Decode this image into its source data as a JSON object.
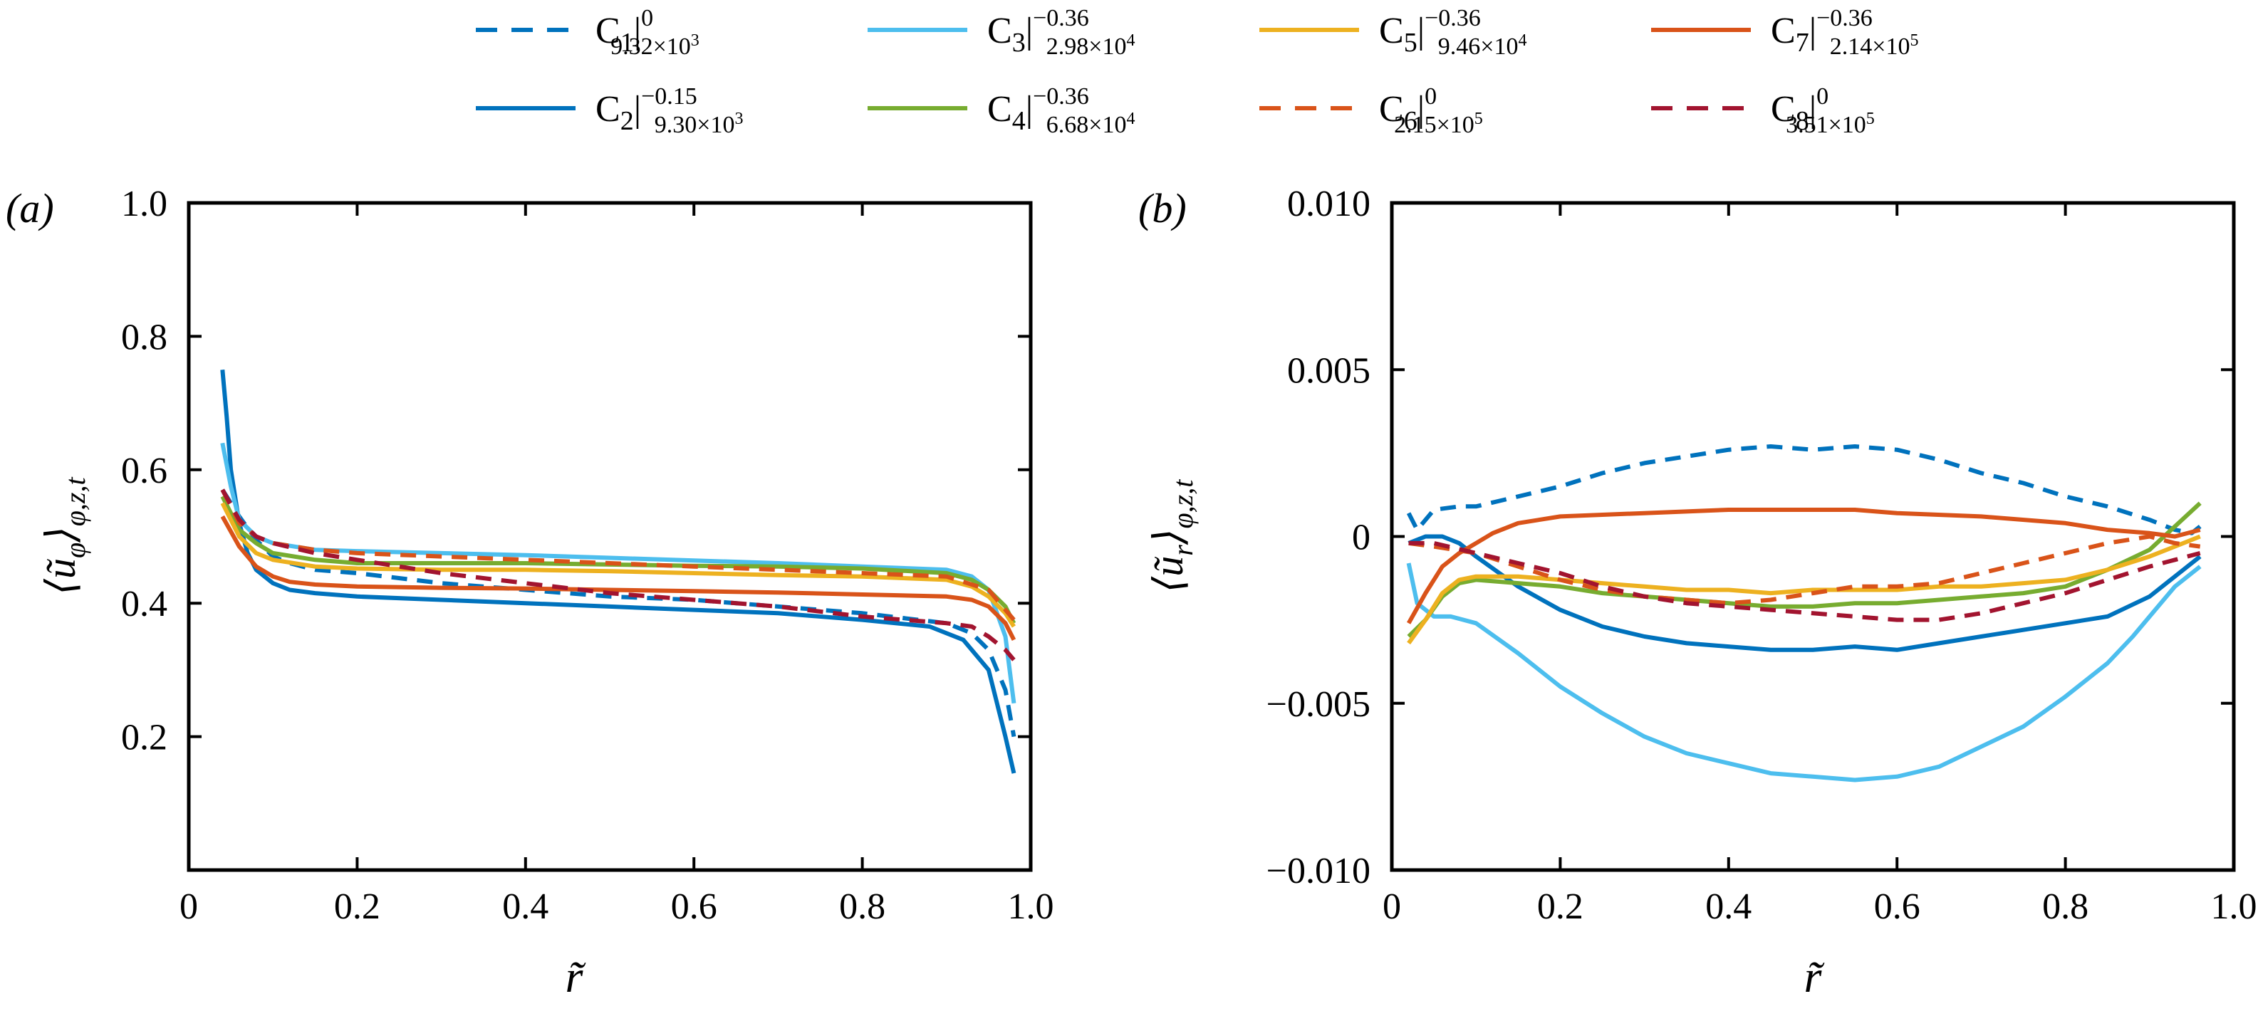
{
  "chart_data": [
    {
      "panel_label": "(a)",
      "type": "line",
      "ylabel_main": "⟨ũ",
      "ylabel_sub": "φ",
      "ylabel_close": "⟩",
      "ylabel_tail": "φ,z,t",
      "xlabel": "r̃",
      "xlim": [
        0,
        1
      ],
      "ylim": [
        0,
        1
      ],
      "xticks": [
        0,
        0.2,
        0.4,
        0.6,
        0.8,
        1.0
      ],
      "xtick_labels": [
        "0",
        "0.2",
        "0.4",
        "0.6",
        "0.8",
        "1.0"
      ],
      "yticks": [
        0.2,
        0.4,
        0.6,
        0.8,
        1.0
      ],
      "ytick_labels": [
        "0.2",
        "0.4",
        "0.6",
        "0.8",
        "1.0"
      ],
      "series": [
        {
          "name": "C1",
          "x": [
            0.04,
            0.06,
            0.08,
            0.1,
            0.12,
            0.15,
            0.2,
            0.3,
            0.4,
            0.5,
            0.6,
            0.7,
            0.8,
            0.9,
            0.93,
            0.95,
            0.97,
            0.98
          ],
          "y": [
            0.57,
            0.53,
            0.495,
            0.47,
            0.46,
            0.45,
            0.445,
            0.43,
            0.42,
            0.41,
            0.405,
            0.395,
            0.385,
            0.37,
            0.355,
            0.33,
            0.27,
            0.2
          ]
        },
        {
          "name": "C2",
          "x": [
            0.04,
            0.045,
            0.05,
            0.06,
            0.07,
            0.08,
            0.1,
            0.12,
            0.15,
            0.2,
            0.3,
            0.4,
            0.5,
            0.6,
            0.7,
            0.8,
            0.88,
            0.92,
            0.95,
            0.97,
            0.98
          ],
          "y": [
            0.75,
            0.68,
            0.6,
            0.52,
            0.475,
            0.45,
            0.43,
            0.42,
            0.415,
            0.41,
            0.405,
            0.4,
            0.395,
            0.39,
            0.385,
            0.375,
            0.365,
            0.345,
            0.3,
            0.2,
            0.145
          ]
        },
        {
          "name": "C3",
          "x": [
            0.04,
            0.05,
            0.06,
            0.08,
            0.1,
            0.15,
            0.2,
            0.3,
            0.4,
            0.5,
            0.6,
            0.7,
            0.8,
            0.9,
            0.93,
            0.95,
            0.97,
            0.98
          ],
          "y": [
            0.64,
            0.575,
            0.525,
            0.5,
            0.49,
            0.48,
            0.478,
            0.475,
            0.472,
            0.468,
            0.464,
            0.46,
            0.455,
            0.45,
            0.44,
            0.42,
            0.35,
            0.25
          ]
        },
        {
          "name": "C4",
          "x": [
            0.04,
            0.06,
            0.08,
            0.1,
            0.15,
            0.2,
            0.3,
            0.4,
            0.5,
            0.6,
            0.7,
            0.8,
            0.9,
            0.93,
            0.95,
            0.97,
            0.98
          ],
          "y": [
            0.56,
            0.51,
            0.49,
            0.475,
            0.465,
            0.46,
            0.46,
            0.46,
            0.458,
            0.456,
            0.455,
            0.452,
            0.445,
            0.435,
            0.42,
            0.395,
            0.37
          ]
        },
        {
          "name": "C5",
          "x": [
            0.04,
            0.06,
            0.08,
            0.1,
            0.15,
            0.2,
            0.3,
            0.4,
            0.5,
            0.6,
            0.7,
            0.8,
            0.9,
            0.93,
            0.95,
            0.97,
            0.98
          ],
          "y": [
            0.55,
            0.5,
            0.475,
            0.465,
            0.455,
            0.452,
            0.45,
            0.45,
            0.448,
            0.445,
            0.442,
            0.44,
            0.435,
            0.425,
            0.41,
            0.385,
            0.365
          ]
        },
        {
          "name": "C6",
          "x": [
            0.04,
            0.06,
            0.08,
            0.1,
            0.15,
            0.2,
            0.3,
            0.4,
            0.5,
            0.6,
            0.7,
            0.8,
            0.9,
            0.95,
            0.98
          ],
          "y": [
            0.57,
            0.52,
            0.5,
            0.49,
            0.48,
            0.475,
            0.47,
            0.465,
            0.46,
            0.455,
            0.45,
            0.445,
            0.44,
            0.42,
            0.375
          ]
        },
        {
          "name": "C7",
          "x": [
            0.04,
            0.06,
            0.08,
            0.1,
            0.12,
            0.15,
            0.2,
            0.3,
            0.4,
            0.5,
            0.6,
            0.7,
            0.8,
            0.9,
            0.93,
            0.95,
            0.97,
            0.98
          ],
          "y": [
            0.53,
            0.485,
            0.455,
            0.44,
            0.432,
            0.428,
            0.425,
            0.423,
            0.422,
            0.42,
            0.418,
            0.416,
            0.413,
            0.41,
            0.405,
            0.395,
            0.37,
            0.345
          ]
        },
        {
          "name": "C8",
          "x": [
            0.04,
            0.06,
            0.08,
            0.1,
            0.15,
            0.2,
            0.3,
            0.4,
            0.5,
            0.6,
            0.7,
            0.8,
            0.9,
            0.93,
            0.95,
            0.97,
            0.98
          ],
          "y": [
            0.57,
            0.525,
            0.5,
            0.49,
            0.475,
            0.465,
            0.445,
            0.43,
            0.415,
            0.405,
            0.395,
            0.38,
            0.37,
            0.365,
            0.35,
            0.33,
            0.315
          ]
        }
      ]
    },
    {
      "panel_label": "(b)",
      "type": "line",
      "ylabel_main": "⟨ũ",
      "ylabel_sub": "r",
      "ylabel_close": "⟩",
      "ylabel_tail": "φ,z,t",
      "xlabel": "r̃",
      "xlim": [
        0,
        1
      ],
      "ylim": [
        -0.01,
        0.01
      ],
      "xticks": [
        0,
        0.2,
        0.4,
        0.6,
        0.8,
        1.0
      ],
      "xtick_labels": [
        "0",
        "0.2",
        "0.4",
        "0.6",
        "0.8",
        "1.0"
      ],
      "yticks": [
        -0.01,
        -0.005,
        0,
        0.005,
        0.01
      ],
      "ytick_labels": [
        "−0.010",
        "−0.005",
        "0",
        "0.005",
        "0.010"
      ],
      "series": [
        {
          "name": "C1",
          "x": [
            0.02,
            0.03,
            0.05,
            0.08,
            0.1,
            0.15,
            0.2,
            0.25,
            0.3,
            0.35,
            0.4,
            0.45,
            0.5,
            0.55,
            0.6,
            0.65,
            0.7,
            0.75,
            0.8,
            0.85,
            0.9,
            0.93,
            0.95,
            0.96
          ],
          "y": [
            0.0007,
            0.0002,
            0.0008,
            0.0009,
            0.0009,
            0.0012,
            0.0015,
            0.0019,
            0.0022,
            0.0024,
            0.0026,
            0.0027,
            0.0026,
            0.0027,
            0.0026,
            0.0023,
            0.0019,
            0.0016,
            0.0012,
            0.0009,
            0.0005,
            0.0002,
            0.0001,
            0.0003
          ]
        },
        {
          "name": "C2",
          "x": [
            0.02,
            0.04,
            0.06,
            0.08,
            0.1,
            0.15,
            0.2,
            0.25,
            0.3,
            0.35,
            0.4,
            0.45,
            0.5,
            0.55,
            0.6,
            0.65,
            0.7,
            0.75,
            0.8,
            0.85,
            0.9,
            0.93,
            0.96
          ],
          "y": [
            -0.0002,
            0,
            0,
            -0.0002,
            -0.0006,
            -0.0015,
            -0.0022,
            -0.0027,
            -0.003,
            -0.0032,
            -0.0033,
            -0.0034,
            -0.0034,
            -0.0033,
            -0.0034,
            -0.0032,
            -0.003,
            -0.0028,
            -0.0026,
            -0.0024,
            -0.0018,
            -0.0012,
            -0.0006
          ]
        },
        {
          "name": "C3",
          "x": [
            0.02,
            0.03,
            0.05,
            0.07,
            0.1,
            0.15,
            0.2,
            0.25,
            0.3,
            0.35,
            0.4,
            0.45,
            0.5,
            0.55,
            0.6,
            0.65,
            0.7,
            0.75,
            0.8,
            0.85,
            0.88,
            0.9,
            0.93,
            0.96
          ],
          "y": [
            -0.0008,
            -0.002,
            -0.0024,
            -0.0024,
            -0.0026,
            -0.0035,
            -0.0045,
            -0.0053,
            -0.006,
            -0.0065,
            -0.0068,
            -0.0071,
            -0.0072,
            -0.0073,
            -0.0072,
            -0.0069,
            -0.0063,
            -0.0057,
            -0.0048,
            -0.0038,
            -0.003,
            -0.0024,
            -0.0015,
            -0.0009
          ]
        },
        {
          "name": "C4",
          "x": [
            0.02,
            0.04,
            0.06,
            0.08,
            0.1,
            0.15,
            0.2,
            0.25,
            0.3,
            0.35,
            0.4,
            0.45,
            0.5,
            0.55,
            0.6,
            0.65,
            0.7,
            0.75,
            0.8,
            0.85,
            0.9,
            0.93,
            0.96
          ],
          "y": [
            -0.003,
            -0.0025,
            -0.0018,
            -0.0014,
            -0.0013,
            -0.0014,
            -0.0015,
            -0.0017,
            -0.0018,
            -0.0019,
            -0.002,
            -0.0021,
            -0.0021,
            -0.002,
            -0.002,
            -0.0019,
            -0.0018,
            -0.0017,
            -0.0015,
            -0.001,
            -0.0004,
            0.0003,
            0.001
          ]
        },
        {
          "name": "C5",
          "x": [
            0.02,
            0.04,
            0.06,
            0.08,
            0.1,
            0.15,
            0.2,
            0.25,
            0.3,
            0.35,
            0.4,
            0.45,
            0.5,
            0.55,
            0.6,
            0.65,
            0.7,
            0.75,
            0.8,
            0.85,
            0.9,
            0.93,
            0.96
          ],
          "y": [
            -0.0032,
            -0.0025,
            -0.0017,
            -0.0013,
            -0.0012,
            -0.0012,
            -0.0013,
            -0.0014,
            -0.0015,
            -0.0016,
            -0.0016,
            -0.0017,
            -0.0016,
            -0.0016,
            -0.0016,
            -0.0015,
            -0.0015,
            -0.0014,
            -0.0013,
            -0.001,
            -0.0006,
            -0.0003,
            0
          ]
        },
        {
          "name": "C6",
          "x": [
            0.02,
            0.05,
            0.1,
            0.15,
            0.2,
            0.25,
            0.3,
            0.35,
            0.4,
            0.45,
            0.5,
            0.55,
            0.6,
            0.65,
            0.7,
            0.75,
            0.8,
            0.85,
            0.9,
            0.93,
            0.96
          ],
          "y": [
            -0.0002,
            -0.0003,
            -0.0005,
            -0.0009,
            -0.0013,
            -0.0016,
            -0.0018,
            -0.0019,
            -0.002,
            -0.0019,
            -0.0017,
            -0.0015,
            -0.0015,
            -0.0014,
            -0.0011,
            -0.0008,
            -0.0005,
            -0.0002,
            0,
            -0.0002,
            -0.0003
          ]
        },
        {
          "name": "C7",
          "x": [
            0.02,
            0.04,
            0.06,
            0.08,
            0.1,
            0.12,
            0.15,
            0.2,
            0.3,
            0.4,
            0.5,
            0.55,
            0.6,
            0.7,
            0.8,
            0.85,
            0.9,
            0.93,
            0.96
          ],
          "y": [
            -0.0026,
            -0.0017,
            -0.0009,
            -0.0005,
            -0.0002,
            0.0001,
            0.0004,
            0.0006,
            0.0007,
            0.0008,
            0.0008,
            0.0008,
            0.0007,
            0.0006,
            0.0004,
            0.0002,
            0.0001,
            0,
            0.0002
          ]
        },
        {
          "name": "C8",
          "x": [
            0.02,
            0.05,
            0.1,
            0.15,
            0.2,
            0.25,
            0.3,
            0.35,
            0.4,
            0.45,
            0.5,
            0.55,
            0.6,
            0.65,
            0.7,
            0.75,
            0.8,
            0.85,
            0.9,
            0.93,
            0.96
          ],
          "y": [
            -0.0002,
            -0.0002,
            -0.0005,
            -0.0008,
            -0.0011,
            -0.0015,
            -0.0018,
            -0.002,
            -0.0021,
            -0.0022,
            -0.0023,
            -0.0024,
            -0.0025,
            -0.0025,
            -0.0023,
            -0.002,
            -0.0017,
            -0.0013,
            -0.0009,
            -0.0007,
            -0.0005
          ]
        }
      ]
    }
  ],
  "legend": {
    "placement": "top",
    "entries": [
      {
        "series": "C1",
        "base": "C",
        "num": "1",
        "sup": "0",
        "sub": "9.32×10",
        "exp": "3",
        "color": "#0072BD",
        "dash": true
      },
      {
        "series": "C2",
        "base": "C",
        "num": "2",
        "sup": "−0.15",
        "sub": "9.30×10",
        "exp": "3",
        "color": "#0072BD",
        "dash": false
      },
      {
        "series": "C3",
        "base": "C",
        "num": "3",
        "sup": "−0.36",
        "sub": "2.98×10",
        "exp": "4",
        "color": "#4DBEEE",
        "dash": false
      },
      {
        "series": "C4",
        "base": "C",
        "num": "4",
        "sup": "−0.36",
        "sub": "6.68×10",
        "exp": "4",
        "color": "#77AC30",
        "dash": false
      },
      {
        "series": "C5",
        "base": "C",
        "num": "5",
        "sup": "−0.36",
        "sub": "9.46×10",
        "exp": "4",
        "color": "#EDB120",
        "dash": false
      },
      {
        "series": "C6",
        "base": "C",
        "num": "6",
        "sup": "0",
        "sub": "2.15×10",
        "exp": "5",
        "color": "#D95319",
        "dash": true
      },
      {
        "series": "C7",
        "base": "C",
        "num": "7",
        "sup": "−0.36",
        "sub": "2.14×10",
        "exp": "5",
        "color": "#D95319",
        "dash": false
      },
      {
        "series": "C8",
        "base": "C",
        "num": "8",
        "sup": "0",
        "sub": "3.51×10",
        "exp": "5",
        "color": "#A2142F",
        "dash": true
      }
    ]
  }
}
